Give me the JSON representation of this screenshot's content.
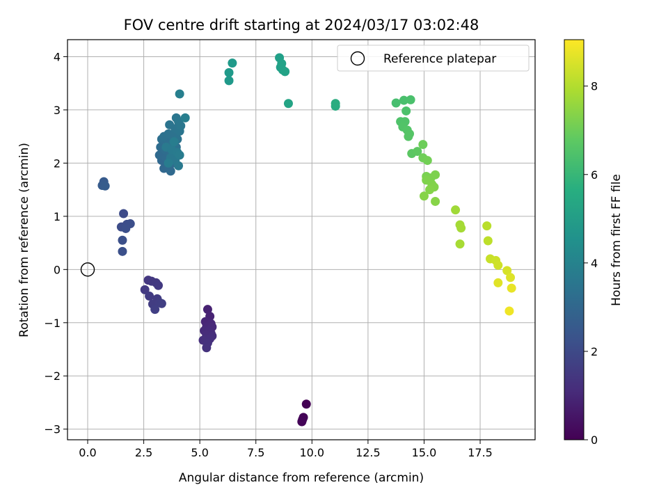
{
  "chart_data": {
    "type": "scatter",
    "title": "FOV centre drift starting at 2024/03/17 03:02:48",
    "xlabel": "Angular distance from reference (arcmin)",
    "ylabel": "Rotation from reference (arcmin)",
    "xlim": [
      -0.9,
      19.95
    ],
    "ylim": [
      -3.2,
      4.32
    ],
    "xticks": [
      0.0,
      2.5,
      5.0,
      7.5,
      10.0,
      12.5,
      15.0,
      17.5
    ],
    "xtick_labels": [
      "0.0",
      "2.5",
      "5.0",
      "7.5",
      "10.0",
      "12.5",
      "15.0",
      "17.5"
    ],
    "yticks": [
      -3,
      -2,
      -1,
      0,
      1,
      2,
      3,
      4
    ],
    "ytick_labels": [
      "−3",
      "−2",
      "−1",
      "0",
      "1",
      "2",
      "3",
      "4"
    ],
    "grid": true,
    "legend": {
      "placement": "top-right",
      "entries": [
        "Reference platepar"
      ]
    },
    "reference": {
      "x": 0.0,
      "y": 0.0,
      "label": "Reference platepar"
    },
    "colorbar": {
      "label": "Hours from first FF file",
      "colormap": "viridis",
      "range": [
        0,
        9.05
      ],
      "ticks": [
        0,
        2,
        4,
        6,
        8
      ],
      "tick_labels": [
        "0",
        "2",
        "4",
        "6",
        "8"
      ]
    },
    "points": [
      [
        9.75,
        -2.53,
        0.0
      ],
      [
        9.62,
        -2.78,
        0.05
      ],
      [
        9.58,
        -2.82,
        0.08
      ],
      [
        9.55,
        -2.86,
        0.1
      ],
      [
        5.35,
        -0.75,
        0.85
      ],
      [
        5.45,
        -0.88,
        0.9
      ],
      [
        5.25,
        -0.98,
        0.95
      ],
      [
        5.5,
        -1.02,
        1.0
      ],
      [
        5.3,
        -1.08,
        1.02
      ],
      [
        5.55,
        -1.08,
        1.05
      ],
      [
        5.2,
        -1.15,
        1.08
      ],
      [
        5.4,
        -1.15,
        1.1
      ],
      [
        5.5,
        -1.2,
        1.12
      ],
      [
        5.3,
        -1.22,
        1.15
      ],
      [
        5.55,
        -1.25,
        1.18
      ],
      [
        5.25,
        -1.3,
        1.2
      ],
      [
        5.45,
        -1.3,
        1.22
      ],
      [
        5.15,
        -1.33,
        1.25
      ],
      [
        5.35,
        -1.38,
        1.28
      ],
      [
        5.3,
        -1.47,
        1.3
      ],
      [
        2.7,
        -0.2,
        1.45
      ],
      [
        2.85,
        -0.22,
        1.48
      ],
      [
        3.05,
        -0.25,
        1.5
      ],
      [
        3.15,
        -0.3,
        1.52
      ],
      [
        2.55,
        -0.38,
        1.55
      ],
      [
        2.75,
        -0.5,
        1.58
      ],
      [
        3.1,
        -0.55,
        1.6
      ],
      [
        2.9,
        -0.65,
        1.62
      ],
      [
        3.2,
        -0.62,
        1.65
      ],
      [
        3.3,
        -0.64,
        1.68
      ],
      [
        3.0,
        -0.75,
        1.7
      ],
      [
        1.6,
        1.05,
        2.05
      ],
      [
        1.5,
        0.8,
        2.1
      ],
      [
        1.75,
        0.85,
        2.12
      ],
      [
        1.9,
        0.86,
        2.15
      ],
      [
        1.7,
        0.77,
        2.18
      ],
      [
        1.55,
        0.55,
        2.2
      ],
      [
        1.55,
        0.34,
        2.22
      ],
      [
        0.72,
        1.65,
        2.55
      ],
      [
        0.65,
        1.58,
        2.58
      ],
      [
        0.78,
        1.57,
        2.6
      ],
      [
        3.3,
        2.05,
        3.0
      ],
      [
        3.4,
        1.9,
        3.02
      ],
      [
        3.6,
        1.95,
        3.05
      ],
      [
        3.7,
        1.85,
        3.08
      ],
      [
        3.2,
        2.15,
        3.1
      ],
      [
        3.5,
        2.1,
        3.12
      ],
      [
        3.8,
        2.0,
        3.15
      ],
      [
        3.25,
        2.3,
        3.18
      ],
      [
        3.45,
        2.25,
        3.2
      ],
      [
        3.65,
        2.2,
        3.22
      ],
      [
        3.85,
        2.15,
        3.25
      ],
      [
        3.3,
        2.45,
        3.28
      ],
      [
        3.55,
        2.4,
        3.3
      ],
      [
        3.75,
        2.35,
        3.32
      ],
      [
        3.95,
        2.3,
        3.35
      ],
      [
        3.4,
        2.5,
        3.38
      ],
      [
        3.6,
        2.55,
        3.4
      ],
      [
        3.8,
        2.5,
        3.42
      ],
      [
        4.0,
        2.45,
        3.45
      ],
      [
        3.65,
        2.72,
        3.48
      ],
      [
        3.9,
        2.65,
        3.5
      ],
      [
        4.1,
        2.6,
        3.52
      ],
      [
        3.95,
        2.85,
        3.55
      ],
      [
        4.05,
        2.78,
        3.58
      ],
      [
        4.15,
        2.7,
        3.6
      ],
      [
        3.7,
        2.1,
        3.62
      ],
      [
        3.9,
        2.05,
        3.65
      ],
      [
        4.05,
        1.95,
        3.68
      ],
      [
        3.5,
        2.3,
        3.7
      ],
      [
        3.75,
        2.25,
        3.72
      ],
      [
        4.0,
        2.2,
        3.75
      ],
      [
        4.1,
        2.15,
        3.78
      ],
      [
        3.6,
        2.0,
        3.8
      ],
      [
        3.85,
        2.4,
        3.82
      ],
      [
        4.35,
        2.85,
        3.85
      ],
      [
        4.1,
        3.3,
        3.9
      ],
      [
        6.3,
        3.55,
        4.85
      ],
      [
        6.3,
        3.7,
        4.88
      ],
      [
        6.45,
        3.88,
        4.9
      ],
      [
        8.55,
        3.98,
        5.1
      ],
      [
        8.6,
        3.8,
        5.12
      ],
      [
        8.7,
        3.75,
        5.15
      ],
      [
        8.65,
        3.87,
        5.18
      ],
      [
        8.8,
        3.72,
        5.2
      ],
      [
        8.95,
        3.12,
        5.25
      ],
      [
        11.05,
        3.07,
        5.55
      ],
      [
        11.05,
        3.12,
        5.58
      ],
      [
        13.75,
        3.13,
        6.35
      ],
      [
        14.1,
        3.18,
        6.4
      ],
      [
        14.4,
        3.19,
        6.42
      ],
      [
        14.2,
        2.98,
        6.45
      ],
      [
        13.95,
        2.78,
        6.5
      ],
      [
        14.15,
        2.78,
        6.52
      ],
      [
        14.05,
        2.68,
        6.55
      ],
      [
        14.25,
        2.62,
        6.58
      ],
      [
        14.35,
        2.55,
        6.6
      ],
      [
        14.3,
        2.5,
        6.62
      ],
      [
        14.45,
        2.18,
        6.7
      ],
      [
        14.7,
        2.22,
        6.75
      ],
      [
        14.95,
        2.35,
        7.0
      ],
      [
        14.95,
        2.1,
        7.05
      ],
      [
        15.15,
        2.05,
        7.1
      ],
      [
        15.1,
        1.75,
        7.2
      ],
      [
        15.3,
        1.72,
        7.22
      ],
      [
        15.5,
        1.78,
        7.25
      ],
      [
        15.1,
        1.68,
        7.28
      ],
      [
        15.35,
        1.6,
        7.3
      ],
      [
        15.45,
        1.55,
        7.32
      ],
      [
        15.25,
        1.5,
        7.35
      ],
      [
        15.0,
        1.38,
        7.38
      ],
      [
        15.5,
        1.28,
        7.4
      ],
      [
        16.4,
        1.12,
        7.75
      ],
      [
        16.6,
        0.84,
        7.8
      ],
      [
        16.65,
        0.78,
        7.82
      ],
      [
        16.6,
        0.48,
        7.85
      ],
      [
        17.8,
        0.82,
        8.1
      ],
      [
        17.85,
        0.54,
        8.15
      ],
      [
        17.95,
        0.2,
        8.3
      ],
      [
        18.2,
        0.17,
        8.35
      ],
      [
        18.3,
        0.08,
        8.4
      ],
      [
        18.7,
        -0.02,
        8.5
      ],
      [
        18.85,
        -0.15,
        8.6
      ],
      [
        18.3,
        -0.25,
        8.65
      ],
      [
        18.9,
        -0.35,
        8.75
      ],
      [
        18.8,
        -0.78,
        8.85
      ]
    ]
  }
}
